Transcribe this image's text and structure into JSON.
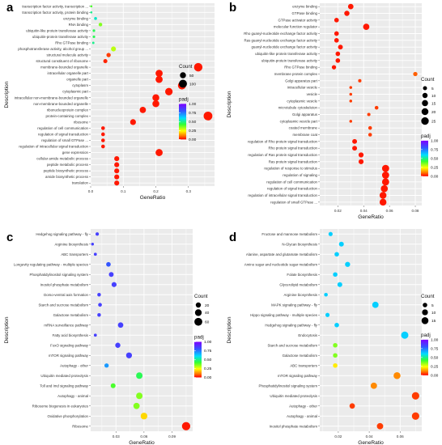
{
  "chart_data": [
    {
      "panel_label": "a",
      "type": "scatter",
      "xlabel": "GeneRatio",
      "ylabel": "Description",
      "xlim": [
        0,
        0.38
      ],
      "xticks": [
        "0.0",
        "0.1",
        "0.2",
        "0.3"
      ],
      "xtick_values": [
        0,
        0.1,
        0.2,
        0.3
      ],
      "legend": {
        "count_title": "Count",
        "count_values": [
          50,
          100
        ],
        "color_title": "padj",
        "color_ticks": [
          "1.00",
          "0.75",
          "0.50",
          "0.25",
          "0.00"
        ],
        "color_range": [
          0,
          1
        ]
      },
      "size_range": [
        1,
        130
      ],
      "categories": [
        "transcription factor activity, transcription ...",
        "transcription factor activity, protein binding",
        "enzyme binding",
        "RNA binding",
        "ubiquitin-like protein transferase activity",
        "ubiquitin-protein transferase activity",
        "Rho GTPase binding",
        "phosphotransferase activity, alcohol group ...",
        "structural molecule activity",
        "structural constituent of ribosome",
        "membrane-bounded organelle",
        "intracellular organelle part",
        "organelle part",
        "cytoplasm",
        "cytoplasmic part",
        "intracellular non-membrane-bounded organelle",
        "non-membrane-bounded organelle",
        "ribonucleoprotein complex",
        "protein-containing complex",
        "ribosome",
        "regulation of cell communication",
        "regulation of signal transduction",
        "regulation of small GTPase ...",
        "regulation of intracellular signal transduction",
        "gene expression",
        "cellular amide metabolic process",
        "peptide metabolic process",
        "peptide biosynthetic process",
        "amide biosynthetic process",
        "translation"
      ],
      "points": [
        {
          "x": 0.002,
          "count": 2,
          "padj": 0.4
        },
        {
          "x": 0.002,
          "count": 2,
          "padj": 0.5
        },
        {
          "x": 0.015,
          "count": 6,
          "padj": 0.55
        },
        {
          "x": 0.03,
          "count": 12,
          "padj": 0.35
        },
        {
          "x": 0.01,
          "count": 4,
          "padj": 0.45
        },
        {
          "x": 0.01,
          "count": 4,
          "padj": 0.45
        },
        {
          "x": 0.008,
          "count": 3,
          "padj": 0.5
        },
        {
          "x": 0.07,
          "count": 30,
          "padj": 0.3
        },
        {
          "x": 0.055,
          "count": 20,
          "padj": 0.05
        },
        {
          "x": 0.045,
          "count": 17,
          "padj": 0.03
        },
        {
          "x": 0.33,
          "count": 115,
          "padj": 0.02
        },
        {
          "x": 0.21,
          "count": 75,
          "padj": 0.02
        },
        {
          "x": 0.21,
          "count": 75,
          "padj": 0.02
        },
        {
          "x": 0.28,
          "count": 100,
          "padj": 0.02
        },
        {
          "x": 0.24,
          "count": 85,
          "padj": 0.02
        },
        {
          "x": 0.2,
          "count": 70,
          "padj": 0.02
        },
        {
          "x": 0.2,
          "count": 70,
          "padj": 0.02
        },
        {
          "x": 0.16,
          "count": 55,
          "padj": 0.02
        },
        {
          "x": 0.36,
          "count": 125,
          "padj": 0.02
        },
        {
          "x": 0.13,
          "count": 45,
          "padj": 0.02
        },
        {
          "x": 0.038,
          "count": 13,
          "padj": 0.02
        },
        {
          "x": 0.038,
          "count": 13,
          "padj": 0.02
        },
        {
          "x": 0.038,
          "count": 13,
          "padj": 0.02
        },
        {
          "x": 0.038,
          "count": 13,
          "padj": 0.02
        },
        {
          "x": 0.21,
          "count": 75,
          "padj": 0.02
        },
        {
          "x": 0.08,
          "count": 30,
          "padj": 0.02
        },
        {
          "x": 0.08,
          "count": 30,
          "padj": 0.02
        },
        {
          "x": 0.08,
          "count": 30,
          "padj": 0.02
        },
        {
          "x": 0.08,
          "count": 30,
          "padj": 0.02
        },
        {
          "x": 0.08,
          "count": 30,
          "padj": 0.02
        }
      ]
    },
    {
      "panel_label": "b",
      "type": "scatter",
      "xlabel": "GeneRatio",
      "ylabel": "Description",
      "xlim": [
        0.006,
        0.085
      ],
      "xticks": [
        "0.02",
        "0.04",
        "0.06",
        "0.08"
      ],
      "xtick_values": [
        0.02,
        0.04,
        0.06,
        0.08
      ],
      "legend": {
        "count_title": "Count",
        "count_values": [
          5,
          10,
          15,
          20,
          25
        ],
        "color_title": "padj",
        "color_ticks": [
          "1.00",
          "0.75",
          "0.50",
          "0.25",
          "0.00"
        ],
        "color_range": [
          0,
          1
        ]
      },
      "size_range": [
        1,
        27
      ],
      "categories": [
        "enzyme binding",
        "GTPase binding",
        "GTPase activator activity",
        "molecular function regulator",
        "Rho guanyl-nucleotide exchange factor activity",
        "Ras guanyl-nucleotide exchange factor activity",
        "guanyl-nucleotide exchange factor activity",
        "ubiquitin-like protein transferase activity",
        "ubiquitin-protein transferase activity",
        "Rho GTPase binding",
        "membrane protein complex",
        "Golgi apparatus part",
        "intracellular vesicle",
        "vesicle",
        "cytoplasmic vesicle",
        "microtubule cytoskeleton",
        "Golgi apparatus",
        "cytoplasmic vesicle part",
        "coated membrane",
        "membrane coat",
        "regulation of Rho protein signal transduction",
        "Rho protein signal transduction",
        "regulation of Ras protein signal transduction",
        "Ras protein signal transduction",
        "regulation of response to stimulus",
        "regulation of signaling",
        "regulation of cell communication",
        "regulation of signal transduction",
        "regulation of intracellular signal transduction",
        "regulation of small GTPase ..."
      ],
      "points": [
        {
          "x": 0.03,
          "count": 11,
          "padj": 0.02
        },
        {
          "x": 0.027,
          "count": 10,
          "padj": 0.02
        },
        {
          "x": 0.019,
          "count": 7,
          "padj": 0.02
        },
        {
          "x": 0.042,
          "count": 16,
          "padj": 0.02
        },
        {
          "x": 0.019,
          "count": 7,
          "padj": 0.02
        },
        {
          "x": 0.019,
          "count": 7,
          "padj": 0.02
        },
        {
          "x": 0.022,
          "count": 8,
          "padj": 0.02
        },
        {
          "x": 0.02,
          "count": 7,
          "padj": 0.02
        },
        {
          "x": 0.02,
          "count": 7,
          "padj": 0.02
        },
        {
          "x": 0.017,
          "count": 6,
          "padj": 0.02
        },
        {
          "x": 0.08,
          "count": 6,
          "padj": 0.08
        },
        {
          "x": 0.037,
          "count": 3,
          "padj": 0.05
        },
        {
          "x": 0.03,
          "count": 2,
          "padj": 0.05
        },
        {
          "x": 0.03,
          "count": 2,
          "padj": 0.05
        },
        {
          "x": 0.03,
          "count": 2,
          "padj": 0.05
        },
        {
          "x": 0.05,
          "count": 4,
          "padj": 0.05
        },
        {
          "x": 0.044,
          "count": 3,
          "padj": 0.05
        },
        {
          "x": 0.03,
          "count": 2,
          "padj": 0.05
        },
        {
          "x": 0.045,
          "count": 4,
          "padj": 0.05
        },
        {
          "x": 0.045,
          "count": 4,
          "padj": 0.05
        },
        {
          "x": 0.033,
          "count": 8,
          "padj": 0.02
        },
        {
          "x": 0.033,
          "count": 8,
          "padj": 0.02
        },
        {
          "x": 0.038,
          "count": 9,
          "padj": 0.02
        },
        {
          "x": 0.038,
          "count": 9,
          "padj": 0.02
        },
        {
          "x": 0.057,
          "count": 22,
          "padj": 0.02
        },
        {
          "x": 0.057,
          "count": 22,
          "padj": 0.02
        },
        {
          "x": 0.057,
          "count": 22,
          "padj": 0.02
        },
        {
          "x": 0.056,
          "count": 21,
          "padj": 0.02
        },
        {
          "x": 0.055,
          "count": 20,
          "padj": 0.02
        },
        {
          "x": 0.055,
          "count": 20,
          "padj": 0.02
        }
      ]
    },
    {
      "panel_label": "c",
      "type": "scatter",
      "xlabel": "GeneRatio",
      "ylabel": "Description",
      "xlim": [
        0.003,
        0.112
      ],
      "xticks": [
        "0.03",
        "0.06",
        "0.09"
      ],
      "xtick_values": [
        0.03,
        0.06,
        0.09
      ],
      "legend": {
        "count_title": "Count",
        "count_values": [
          20,
          40,
          60
        ],
        "color_title": "padj",
        "color_ticks": [
          "1.00",
          "0.75",
          "0.50",
          "0.25",
          "0.00"
        ],
        "color_range": [
          0,
          1
        ]
      },
      "size_range": [
        1,
        70
      ],
      "categories": [
        "Hedgehog signaling pathway - fly",
        "Arginine biosynthesis",
        "ABC transporters",
        "Longevity regulating pathway - multiple species",
        "Phosphatidylinositol signaling system",
        "Inositol phosphate metabolism",
        "Dorso-ventral axis formation",
        "Starch and sucrose metabolism",
        "Galactose metabolism",
        "mRNA surveillance pathway",
        "Fatty acid biosynthesis",
        "FoxO signaling pathway",
        "mTOR signaling pathway",
        "Autophagy - other",
        "Ubiquitin mediated proteolysis",
        "Toll and Imd signaling pathway",
        "Autophagy - animal",
        "Ribosome biogenesis in eukaryotes",
        "Oxidative phosphorylation",
        "Ribosome"
      ],
      "points": [
        {
          "x": 0.01,
          "count": 6,
          "padj": 0.85
        },
        {
          "x": 0.005,
          "count": 3,
          "padj": 0.85
        },
        {
          "x": 0.008,
          "count": 4,
          "padj": 0.85
        },
        {
          "x": 0.022,
          "count": 14,
          "padj": 0.8
        },
        {
          "x": 0.025,
          "count": 16,
          "padj": 0.85
        },
        {
          "x": 0.028,
          "count": 18,
          "padj": 0.85
        },
        {
          "x": 0.012,
          "count": 7,
          "padj": 0.85
        },
        {
          "x": 0.013,
          "count": 8,
          "padj": 0.85
        },
        {
          "x": 0.012,
          "count": 7,
          "padj": 0.85
        },
        {
          "x": 0.035,
          "count": 23,
          "padj": 0.85
        },
        {
          "x": 0.008,
          "count": 4,
          "padj": 0.85
        },
        {
          "x": 0.032,
          "count": 20,
          "padj": 0.85
        },
        {
          "x": 0.044,
          "count": 28,
          "padj": 0.85
        },
        {
          "x": 0.02,
          "count": 12,
          "padj": 0.7
        },
        {
          "x": 0.055,
          "count": 36,
          "padj": 0.45
        },
        {
          "x": 0.027,
          "count": 17,
          "padj": 0.4
        },
        {
          "x": 0.055,
          "count": 36,
          "padj": 0.35
        },
        {
          "x": 0.052,
          "count": 34,
          "padj": 0.35
        },
        {
          "x": 0.06,
          "count": 40,
          "padj": 0.2
        },
        {
          "x": 0.105,
          "count": 68,
          "padj": 0.02
        }
      ]
    },
    {
      "panel_label": "d",
      "type": "scatter",
      "xlabel": "GeneRatio",
      "ylabel": "Description",
      "xlim": [
        0.008,
        0.074
      ],
      "xticks": [
        "0.02",
        "0.04",
        "0.06"
      ],
      "xtick_values": [
        0.02,
        0.04,
        0.06
      ],
      "legend": {
        "count_title": "Count",
        "count_values": [
          5,
          10,
          15
        ],
        "color_title": "padj",
        "color_ticks": [
          "1.00",
          "0.75",
          "0.50",
          "0.25",
          "0.00"
        ],
        "color_range": [
          0,
          1
        ]
      },
      "size_range": [
        1,
        18
      ],
      "categories": [
        "Fructose and mannose metabolism",
        "N-Glycan biosynthesis",
        "Alanine, aspartate and glutamate metabolism",
        "Amino sugar and nucleotide sugar metabolism",
        "Folate biosynthesis",
        "Glycerolipid metabolism",
        "Arginine biosynthesis",
        "MAPK signaling pathway - fly",
        "Hippo signaling pathway - multiple species",
        "Hedgehog signaling pathway - fly",
        "Endocytosis",
        "Starch and sucrose metabolism",
        "Galactose metabolism",
        "ABC transporters",
        "mTOR signaling pathway",
        "Phosphatidylinositol signaling system",
        "Ubiquitin mediated proteolysis",
        "Autophagy - other",
        "Autophagy - animal",
        "Inositol phosphate metabolism"
      ],
      "points": [
        {
          "x": 0.015,
          "count": 4,
          "padj": 0.62
        },
        {
          "x": 0.022,
          "count": 6,
          "padj": 0.62
        },
        {
          "x": 0.019,
          "count": 5,
          "padj": 0.62
        },
        {
          "x": 0.026,
          "count": 7,
          "padj": 0.62
        },
        {
          "x": 0.018,
          "count": 5,
          "padj": 0.62
        },
        {
          "x": 0.021,
          "count": 6,
          "padj": 0.62
        },
        {
          "x": 0.012,
          "count": 3,
          "padj": 0.62
        },
        {
          "x": 0.044,
          "count": 12,
          "padj": 0.62
        },
        {
          "x": 0.013,
          "count": 4,
          "padj": 0.62
        },
        {
          "x": 0.019,
          "count": 5,
          "padj": 0.62
        },
        {
          "x": 0.063,
          "count": 17,
          "padj": 0.62
        },
        {
          "x": 0.018,
          "count": 5,
          "padj": 0.35
        },
        {
          "x": 0.018,
          "count": 5,
          "padj": 0.35
        },
        {
          "x": 0.018,
          "count": 5,
          "padj": 0.22
        },
        {
          "x": 0.058,
          "count": 15,
          "padj": 0.12
        },
        {
          "x": 0.043,
          "count": 12,
          "padj": 0.12
        },
        {
          "x": 0.07,
          "count": 18,
          "padj": 0.05
        },
        {
          "x": 0.029,
          "count": 8,
          "padj": 0.05
        },
        {
          "x": 0.07,
          "count": 18,
          "padj": 0.05
        },
        {
          "x": 0.047,
          "count": 12,
          "padj": 0.05
        }
      ]
    }
  ]
}
